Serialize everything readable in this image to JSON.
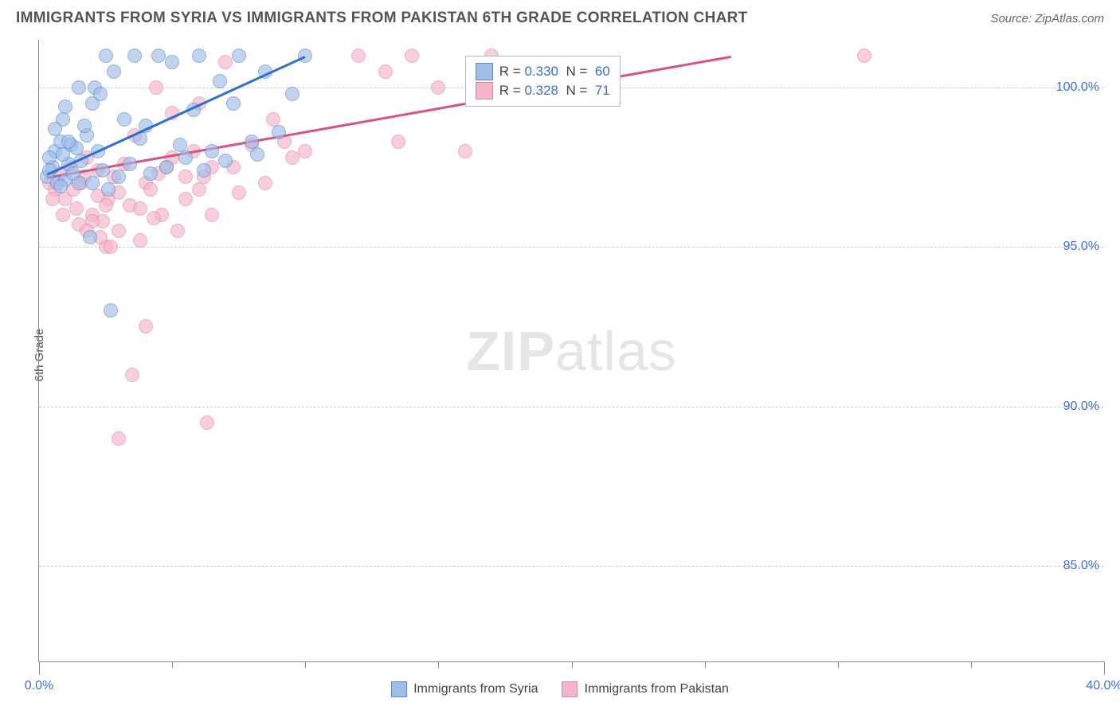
{
  "header": {
    "title": "IMMIGRANTS FROM SYRIA VS IMMIGRANTS FROM PAKISTAN 6TH GRADE CORRELATION CHART",
    "source": "Source: ZipAtlas.com"
  },
  "chart": {
    "type": "scatter",
    "ylabel": "6th Grade",
    "xlim": [
      0,
      40
    ],
    "ylim": [
      82,
      101.5
    ],
    "ytick_values": [
      85,
      90,
      95,
      100
    ],
    "ytick_labels": [
      "85.0%",
      "90.0%",
      "95.0%",
      "100.0%"
    ],
    "xtick_major": [
      0,
      40
    ],
    "xtick_major_labels": [
      "0.0%",
      "40.0%"
    ],
    "xtick_minor": [
      5,
      10,
      15,
      20,
      25,
      30,
      35
    ],
    "background": "#ffffff",
    "grid_color": "#cccccc",
    "axis_color": "#888888",
    "tick_label_color": "#3a6fd8",
    "marker_radius": 9,
    "marker_opacity": 0.65,
    "line_width": 2.5,
    "series": {
      "syria": {
        "label": "Immigrants from Syria",
        "fill": "#9fbde8",
        "stroke": "#5a8ad0",
        "line_color": "#2e6fd0",
        "r_value": "0.330",
        "n_value": "60",
        "trend": {
          "x1": 0.3,
          "y1": 97.3,
          "x2": 10.0,
          "y2": 101.0
        },
        "points": [
          [
            0.3,
            97.2
          ],
          [
            0.5,
            97.5
          ],
          [
            0.6,
            98.0
          ],
          [
            0.7,
            97.0
          ],
          [
            0.4,
            97.8
          ],
          [
            0.8,
            98.3
          ],
          [
            1.0,
            97.1
          ],
          [
            1.1,
            97.6
          ],
          [
            1.2,
            98.2
          ],
          [
            0.9,
            99.0
          ],
          [
            1.3,
            97.3
          ],
          [
            1.5,
            97.0
          ],
          [
            1.4,
            98.1
          ],
          [
            1.6,
            97.7
          ],
          [
            1.8,
            98.5
          ],
          [
            2.0,
            99.5
          ],
          [
            2.1,
            100.0
          ],
          [
            2.3,
            99.8
          ],
          [
            2.5,
            101.0
          ],
          [
            2.2,
            98.0
          ],
          [
            2.4,
            97.4
          ],
          [
            2.6,
            96.8
          ],
          [
            2.8,
            100.5
          ],
          [
            3.0,
            97.2
          ],
          [
            3.2,
            99.0
          ],
          [
            3.4,
            97.6
          ],
          [
            3.6,
            101.0
          ],
          [
            3.8,
            98.4
          ],
          [
            4.0,
            98.8
          ],
          [
            4.2,
            97.3
          ],
          [
            1.9,
            95.3
          ],
          [
            2.7,
            93.0
          ],
          [
            4.5,
            101.0
          ],
          [
            4.8,
            97.5
          ],
          [
            5.0,
            100.8
          ],
          [
            5.3,
            98.2
          ],
          [
            5.5,
            97.8
          ],
          [
            5.8,
            99.3
          ],
          [
            6.0,
            101.0
          ],
          [
            6.2,
            97.4
          ],
          [
            6.5,
            98.0
          ],
          [
            6.8,
            100.2
          ],
          [
            7.0,
            97.7
          ],
          [
            7.3,
            99.5
          ],
          [
            7.5,
            101.0
          ],
          [
            8.0,
            98.3
          ],
          [
            8.2,
            97.9
          ],
          [
            8.5,
            100.5
          ],
          [
            9.0,
            98.6
          ],
          [
            9.5,
            99.8
          ],
          [
            10.0,
            101.0
          ],
          [
            0.6,
            98.7
          ],
          [
            1.0,
            99.4
          ],
          [
            1.5,
            100.0
          ],
          [
            2.0,
            97.0
          ],
          [
            0.8,
            96.9
          ],
          [
            1.1,
            98.3
          ],
          [
            0.4,
            97.4
          ],
          [
            0.9,
            97.9
          ],
          [
            1.7,
            98.8
          ]
        ]
      },
      "pakistan": {
        "label": "Immigants from Pakistan",
        "legend_label": "Immigrants from Pakistan",
        "fill": "#f5b5c8",
        "stroke": "#e08aa8",
        "line_color": "#d8547e",
        "r_value": "0.328",
        "n_value": "71",
        "trend": {
          "x1": 0.3,
          "y1": 97.2,
          "x2": 26.0,
          "y2": 101.0
        },
        "points": [
          [
            0.4,
            97.0
          ],
          [
            0.6,
            96.8
          ],
          [
            0.8,
            97.3
          ],
          [
            1.0,
            96.5
          ],
          [
            1.2,
            97.5
          ],
          [
            1.4,
            96.2
          ],
          [
            1.6,
            97.0
          ],
          [
            1.8,
            97.8
          ],
          [
            2.0,
            96.0
          ],
          [
            2.2,
            97.4
          ],
          [
            2.4,
            95.8
          ],
          [
            2.6,
            96.5
          ],
          [
            2.8,
            97.2
          ],
          [
            3.0,
            95.5
          ],
          [
            3.2,
            97.6
          ],
          [
            3.4,
            96.3
          ],
          [
            3.6,
            98.5
          ],
          [
            3.8,
            95.2
          ],
          [
            4.0,
            97.0
          ],
          [
            4.2,
            96.8
          ],
          [
            4.4,
            100.0
          ],
          [
            4.6,
            96.0
          ],
          [
            4.8,
            97.5
          ],
          [
            5.0,
            99.2
          ],
          [
            5.2,
            95.5
          ],
          [
            5.5,
            96.5
          ],
          [
            5.8,
            98.0
          ],
          [
            6.0,
            99.5
          ],
          [
            6.2,
            97.2
          ],
          [
            6.5,
            96.0
          ],
          [
            7.0,
            100.8
          ],
          [
            7.3,
            97.5
          ],
          [
            7.5,
            96.7
          ],
          [
            8.0,
            98.2
          ],
          [
            8.5,
            97.0
          ],
          [
            8.8,
            99.0
          ],
          [
            9.2,
            98.3
          ],
          [
            9.5,
            97.8
          ],
          [
            10.0,
            98.0
          ],
          [
            3.0,
            89.0
          ],
          [
            4.0,
            92.5
          ],
          [
            2.5,
            95.0
          ],
          [
            6.3,
            89.5
          ],
          [
            3.5,
            91.0
          ],
          [
            12.0,
            101.0
          ],
          [
            13.0,
            100.5
          ],
          [
            14.0,
            101.0
          ],
          [
            15.0,
            100.0
          ],
          [
            17.0,
            101.0
          ],
          [
            13.5,
            98.3
          ],
          [
            16.0,
            98.0
          ],
          [
            31.0,
            101.0
          ],
          [
            2.0,
            95.8
          ],
          [
            2.5,
            96.3
          ],
          [
            3.0,
            96.7
          ],
          [
            1.5,
            95.7
          ],
          [
            3.8,
            96.2
          ],
          [
            4.3,
            95.9
          ],
          [
            1.8,
            95.5
          ],
          [
            2.3,
            95.3
          ],
          [
            2.7,
            95.0
          ],
          [
            0.5,
            96.5
          ],
          [
            0.9,
            96.0
          ],
          [
            1.3,
            96.8
          ],
          [
            1.7,
            97.2
          ],
          [
            2.2,
            96.6
          ],
          [
            4.5,
            97.3
          ],
          [
            5.0,
            97.8
          ],
          [
            5.5,
            97.2
          ],
          [
            6.0,
            96.8
          ],
          [
            6.5,
            97.5
          ]
        ]
      }
    },
    "legend_stats_label_r": "R =",
    "legend_stats_label_n": "N =",
    "watermark": "ZIPatlas"
  }
}
